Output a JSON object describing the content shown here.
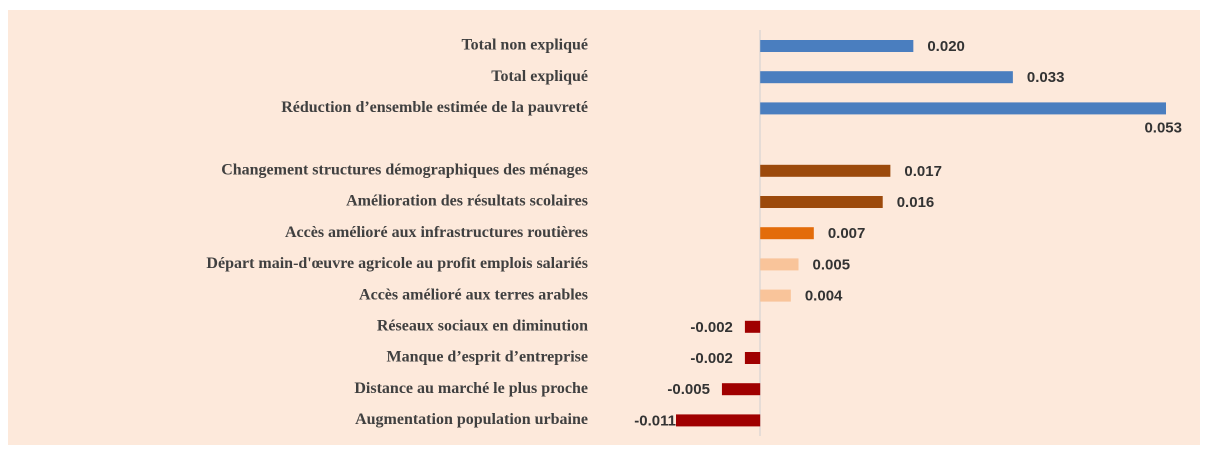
{
  "chart_data": {
    "type": "barh",
    "categories": [
      "Total non expliqué",
      "Total expliqué",
      "Réduction d’ensemble estimée de la pauvreté",
      null,
      "Changement structures démographiques des ménages",
      "Amélioration des résultats scolaires",
      "Accès amélioré aux infrastructures routières",
      "Départ main-d'œuvre agricole au profit emplois salariés",
      "Accès amélioré aux terres arables",
      "Réseaux sociaux en diminution",
      "Manque d’esprit d’entreprise",
      "Distance au marché le plus proche",
      "Augmentation population urbaine"
    ],
    "values": [
      0.02,
      0.033,
      0.053,
      null,
      0.017,
      0.016,
      0.007,
      0.005,
      0.004,
      -0.002,
      -0.002,
      -0.005,
      -0.011
    ],
    "value_labels": [
      "0.020",
      "0.033",
      "0.053",
      null,
      "0.017",
      "0.016",
      "0.007",
      "0.005",
      "0.004",
      "-0.002",
      "-0.002",
      "-0.005",
      "-0.011"
    ],
    "colors": [
      "#4a7ebf",
      "#4a7ebf",
      "#4a7ebf",
      null,
      "#9c4a0c",
      "#9c4a0c",
      "#e36c0a",
      "#f9c49a",
      "#f9c49a",
      "#a00000",
      "#a00000",
      "#a00000",
      "#a00000"
    ]
  }
}
